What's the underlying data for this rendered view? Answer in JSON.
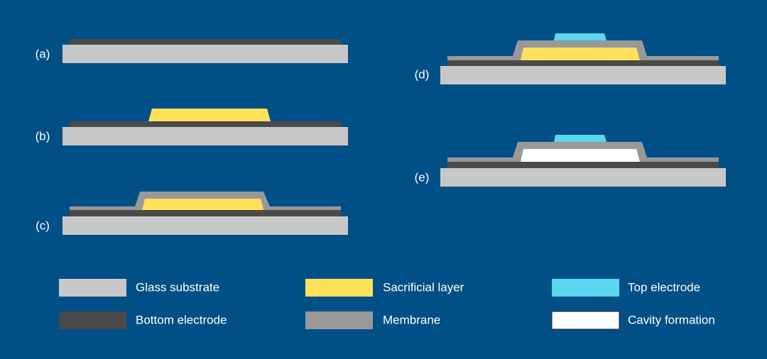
{
  "steps": [
    {
      "label": "(a)"
    },
    {
      "label": "(b)"
    },
    {
      "label": "(c)"
    },
    {
      "label": "(d)"
    },
    {
      "label": "(e)"
    }
  ],
  "legend": [
    {
      "label": "Glass substrate"
    },
    {
      "label": "Sacrificial layer"
    },
    {
      "label": "Top electrode"
    },
    {
      "label": "Bottom electrode"
    },
    {
      "label": "Membrane"
    },
    {
      "label": "Cavity formation"
    }
  ]
}
